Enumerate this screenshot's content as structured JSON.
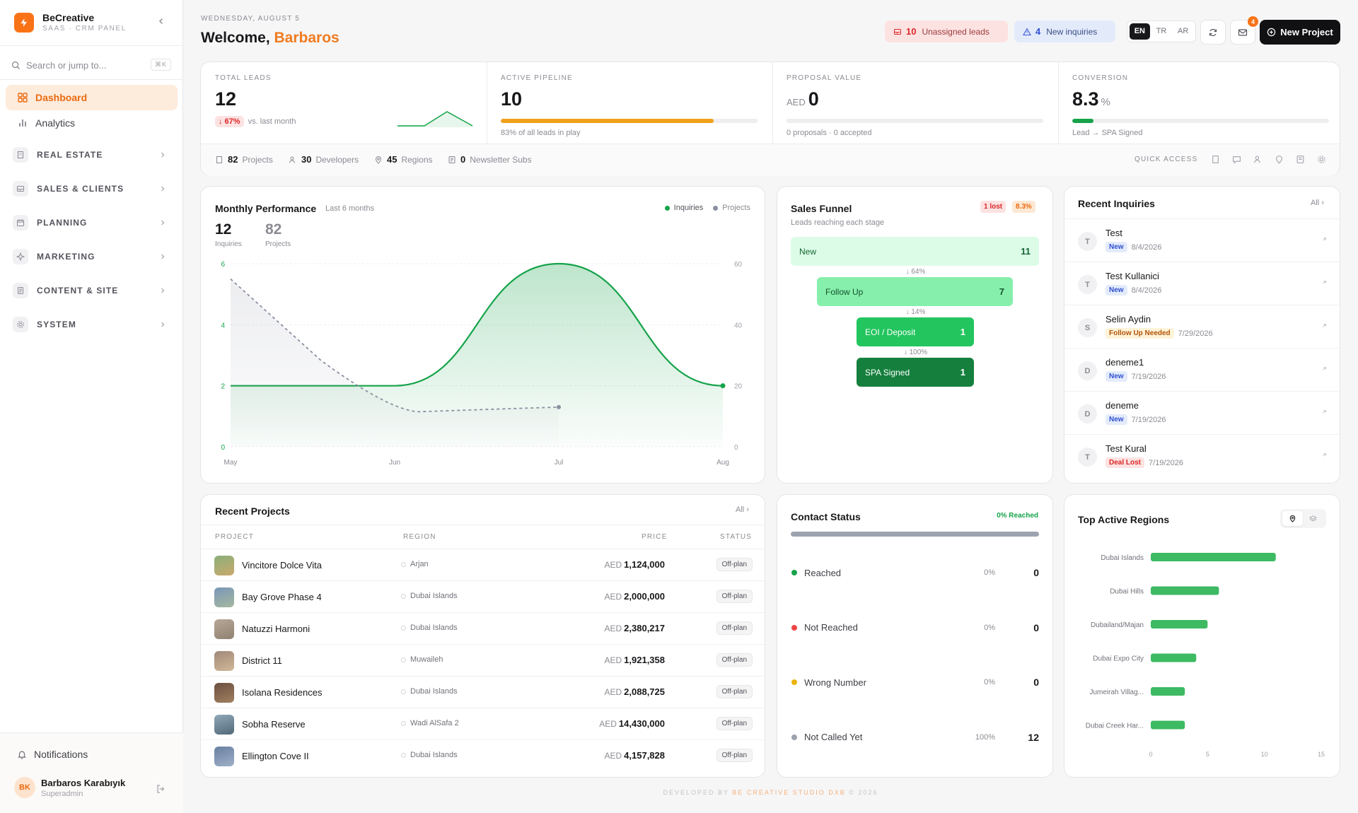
{
  "brand": {
    "name": "BeCreative",
    "sub": "SAAS · CRM PANEL"
  },
  "search": {
    "placeholder": "Search or jump to...",
    "shortcut": "⌘K"
  },
  "nav": {
    "dashboard": "Dashboard",
    "analytics": "Analytics"
  },
  "groups": [
    "REAL ESTATE",
    "SALES & CLIENTS",
    "PLANNING",
    "MARKETING",
    "CONTENT & SITE",
    "SYSTEM"
  ],
  "sidebar_bottom": {
    "notifications": "Notifications",
    "user_initials": "BK",
    "user_name": "Barbaros Karabıyık",
    "user_role": "Superadmin"
  },
  "header": {
    "date": "WEDNESDAY, AUGUST 5",
    "welcome": "Welcome,",
    "user": "Barbaros",
    "unassigned_count": "10",
    "unassigned_label": "Unassigned leads",
    "inquiries_count": "4",
    "inquiries_label": "New inquiries",
    "langs": [
      "EN",
      "TR",
      "AR"
    ],
    "mail_badge": "4",
    "new_project": "New Project"
  },
  "kpis": {
    "leads": {
      "label": "TOTAL LEADS",
      "value": "12",
      "delta": "↓ 67%",
      "delta_text": "vs. last month"
    },
    "pipeline": {
      "label": "ACTIVE PIPELINE",
      "value": "10",
      "progress": 0.83,
      "sub": "83% of all leads in play"
    },
    "proposal": {
      "label": "PROPOSAL VALUE",
      "currency": "AED",
      "value": "0",
      "progress": 0,
      "sub": "0 proposals · 0 accepted"
    },
    "conversion": {
      "label": "CONVERSION",
      "value": "8.3",
      "unit": "%",
      "progress": 0.083,
      "sub": "Lead → SPA Signed"
    }
  },
  "stats": [
    {
      "value": "82",
      "label": "Projects"
    },
    {
      "value": "30",
      "label": "Developers"
    },
    {
      "value": "45",
      "label": "Regions"
    },
    {
      "value": "0",
      "label": "Newsletter Subs"
    }
  ],
  "quick_access": "QUICK ACCESS",
  "performance": {
    "title": "Monthly Performance",
    "period": "Last 6 months",
    "legend_inquiries": "Inquiries",
    "legend_projects": "Projects",
    "inquiries_total": "12",
    "inquiries_label": "Inquiries",
    "projects_total": "82",
    "projects_label": "Projects"
  },
  "chart_data": {
    "type": "line",
    "x": [
      "May",
      "Jun",
      "Jul",
      "Aug"
    ],
    "series": [
      {
        "name": "Inquiries",
        "axis": "left",
        "values": [
          2,
          2,
          6,
          2
        ],
        "color": "#16a34a"
      },
      {
        "name": "Projects",
        "axis": "right",
        "values": [
          55,
          12,
          13,
          null
        ],
        "color": "#8b8fa0"
      }
    ],
    "ylim_left": [
      0,
      6
    ],
    "yticks_left": [
      "0",
      "2",
      "4",
      "6"
    ],
    "ylim_right": [
      0,
      60
    ],
    "yticks_right": [
      "0",
      "20",
      "40",
      "60"
    ],
    "grid": true,
    "legend": "top-right"
  },
  "funnel": {
    "title": "Sales Funnel",
    "subtitle": "Leads reaching each stage",
    "lost": "1 lost",
    "rate": "8.3%",
    "stages": [
      {
        "name": "New",
        "count": "11"
      },
      {
        "name": "Follow Up",
        "count": "7"
      },
      {
        "name": "EOI / Deposit",
        "count": "1"
      },
      {
        "name": "SPA Signed",
        "count": "1"
      }
    ],
    "conversions": [
      "↓ 64%",
      "↓ 14%",
      "↓ 100%"
    ]
  },
  "inquiries": {
    "title": "Recent Inquiries",
    "all": "All",
    "items": [
      {
        "initial": "T",
        "name": "Test",
        "status": "New",
        "date": "8/4/2026"
      },
      {
        "initial": "T",
        "name": "Test Kullanici",
        "status": "New",
        "date": "8/4/2026"
      },
      {
        "initial": "S",
        "name": "Selin Aydin",
        "status": "Follow Up Needed",
        "date": "7/29/2026"
      },
      {
        "initial": "D",
        "name": "deneme1",
        "status": "New",
        "date": "7/19/2026"
      },
      {
        "initial": "D",
        "name": "deneme",
        "status": "New",
        "date": "7/19/2026"
      },
      {
        "initial": "T",
        "name": "Test Kural",
        "status": "Deal Lost",
        "date": "7/19/2026"
      }
    ]
  },
  "projects": {
    "title": "Recent Projects",
    "all": "All",
    "columns": [
      "PROJECT",
      "REGION",
      "PRICE",
      "STATUS"
    ],
    "currency": "AED",
    "rows": [
      {
        "name": "Vincitore Dolce Vita",
        "region": "Arjan",
        "price": "1,124,000",
        "status": "Off-plan"
      },
      {
        "name": "Bay Grove Phase 4",
        "region": "Dubai Islands",
        "price": "2,000,000",
        "status": "Off-plan"
      },
      {
        "name": "Natuzzi Harmoni",
        "region": "Dubai Islands",
        "price": "2,380,217",
        "status": "Off-plan"
      },
      {
        "name": "District 11",
        "region": "Muwaileh",
        "price": "1,921,358",
        "status": "Off-plan"
      },
      {
        "name": "Isolana Residences",
        "region": "Dubai Islands",
        "price": "2,088,725",
        "status": "Off-plan"
      },
      {
        "name": "Sobha Reserve",
        "region": "Wadi AlSafa 2",
        "price": "14,430,000",
        "status": "Off-plan"
      },
      {
        "name": "Ellington Cove II",
        "region": "Dubai Islands",
        "price": "4,157,828",
        "status": "Off-plan"
      }
    ]
  },
  "contact": {
    "title": "Contact Status",
    "reached_pct": "0% Reached",
    "rows": [
      {
        "label": "Reached",
        "pct": "0%",
        "count": "0",
        "color": "#16a34a"
      },
      {
        "label": "Not Reached",
        "pct": "0%",
        "count": "0",
        "color": "#ef4444"
      },
      {
        "label": "Wrong Number",
        "pct": "0%",
        "count": "0",
        "color": "#eab308"
      },
      {
        "label": "Not Called Yet",
        "pct": "100%",
        "count": "12",
        "color": "#9ca3af"
      }
    ]
  },
  "regions": {
    "title": "Top Active Regions",
    "chart": {
      "type": "bar",
      "categories": [
        "Dubai Islands",
        "Dubai Hills",
        "Dubailand/Majan",
        "Dubai Expo City",
        "Jumeirah Villag...",
        "Dubai Creek Har..."
      ],
      "values": [
        11,
        6,
        5,
        4,
        3,
        3
      ],
      "xlim": [
        0,
        15
      ],
      "xticks": [
        "0",
        "5",
        "10",
        "15"
      ]
    }
  },
  "footer": {
    "prefix": "DEVELOPED BY",
    "studio": "BE CREATIVE STUDIO DXB",
    "suffix": "© 2026"
  }
}
